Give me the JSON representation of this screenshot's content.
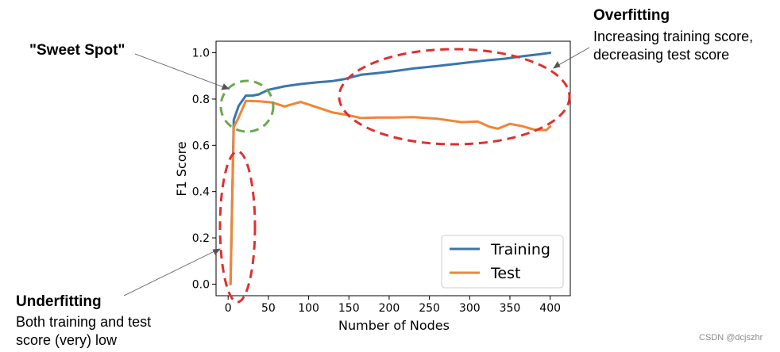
{
  "chart_data": {
    "type": "line",
    "xlabel": "Number of Nodes",
    "ylabel": "F1 Score",
    "xlim": [
      -15,
      425
    ],
    "ylim": [
      -0.05,
      1.05
    ],
    "x_ticks": [
      0,
      50,
      100,
      150,
      200,
      250,
      300,
      350,
      400
    ],
    "y_ticks": [
      0.0,
      0.2,
      0.4,
      0.6,
      0.8,
      1.0
    ],
    "legend_position": "bottom-right",
    "grid": false,
    "series": [
      {
        "name": "Training",
        "color": "#3b75af",
        "x": [
          3,
          7,
          13,
          22,
          30,
          38,
          50,
          70,
          90,
          110,
          130,
          145,
          165,
          185,
          205,
          230,
          260,
          290,
          320,
          345,
          365,
          385,
          400
        ],
        "y": [
          0.0,
          0.71,
          0.77,
          0.815,
          0.815,
          0.82,
          0.84,
          0.855,
          0.865,
          0.872,
          0.878,
          0.887,
          0.905,
          0.912,
          0.92,
          0.932,
          0.943,
          0.955,
          0.967,
          0.975,
          0.985,
          0.993,
          1.0
        ]
      },
      {
        "name": "Test",
        "color": "#ef8636",
        "x": [
          3,
          7,
          13,
          22,
          40,
          55,
          70,
          90,
          110,
          130,
          150,
          165,
          185,
          205,
          230,
          260,
          290,
          310,
          325,
          335,
          350,
          365,
          380,
          395,
          400
        ],
        "y": [
          0.0,
          0.68,
          0.72,
          0.792,
          0.79,
          0.785,
          0.768,
          0.788,
          0.765,
          0.742,
          0.73,
          0.718,
          0.72,
          0.72,
          0.722,
          0.715,
          0.7,
          0.703,
          0.68,
          0.672,
          0.693,
          0.683,
          0.668,
          0.665,
          0.682
        ]
      }
    ],
    "annotations": {
      "sweet_spot": "\"Sweet Spot\"",
      "overfitting_title": "Overfitting",
      "overfitting_line1": "Increasing training score,",
      "overfitting_line2": "decreasing test score",
      "underfitting_title": "Underfitting",
      "underfitting_line1": "Both training and test",
      "underfitting_line2": "score (very) low"
    },
    "ellipse_colors": {
      "sweet_spot": "#6aa84f",
      "regions": "#e03030"
    }
  },
  "watermark": "CSDN @dcjszhr"
}
